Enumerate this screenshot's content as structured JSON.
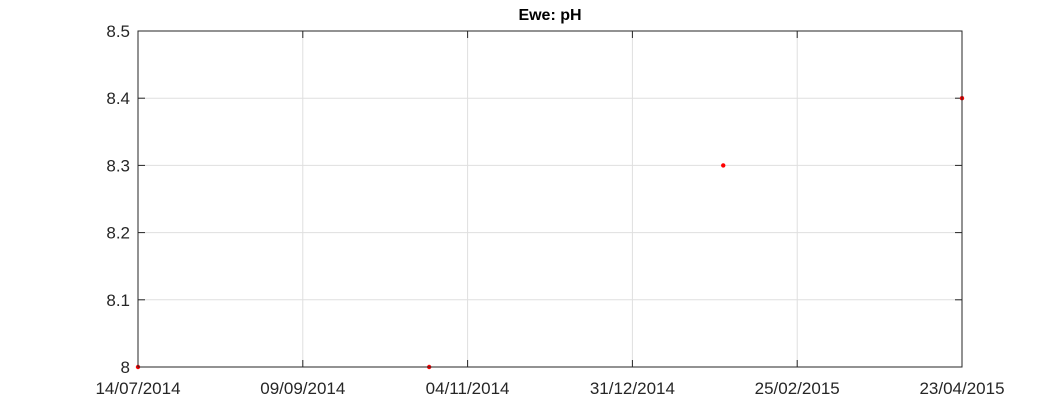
{
  "chart_data": {
    "type": "scatter",
    "title": "Ewe: pH",
    "xlabel": "",
    "ylabel": "",
    "x_type": "date",
    "x_tick_labels": [
      "14/07/2014",
      "09/09/2014",
      "04/11/2014",
      "31/12/2014",
      "25/02/2015",
      "23/04/2015"
    ],
    "xlim": [
      "2014-07-14",
      "2015-04-23"
    ],
    "ylim": [
      8,
      8.5
    ],
    "y_tick_labels": [
      "8",
      "8.1",
      "8.2",
      "8.3",
      "8.4",
      "8.5"
    ],
    "grid": true,
    "series": [
      {
        "color": "#ff0000",
        "marker": "dot",
        "points": [
          {
            "x": "2014-07-14",
            "y": 8.0
          },
          {
            "x": "2014-10-22",
            "y": 8.0
          },
          {
            "x": "2015-01-31",
            "y": 8.3
          },
          {
            "x": "2015-04-23",
            "y": 8.4
          }
        ]
      }
    ],
    "colors": {
      "axis": "#262626",
      "grid": "#dfdfdf",
      "point": "#ff0000",
      "background": "#ffffff"
    }
  }
}
